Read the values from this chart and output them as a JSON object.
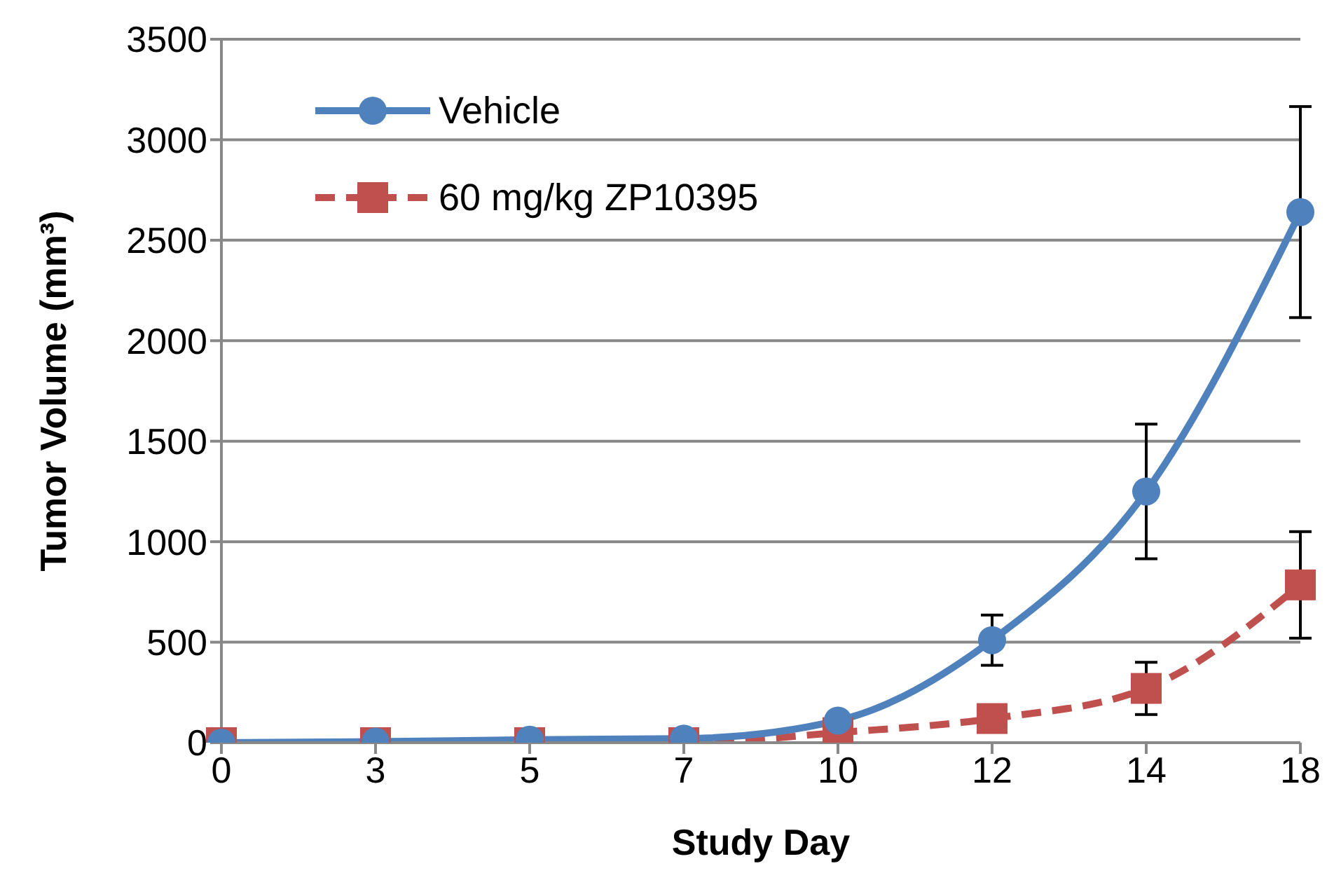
{
  "chart_data": {
    "type": "line",
    "xlabel": "Study Day",
    "ylabel": "Tumor Volume (mm³)",
    "categories": [
      "0",
      "3",
      "5",
      "7",
      "10",
      "12",
      "14",
      "18"
    ],
    "series": [
      {
        "name": "Vehicle",
        "color": "#4f81bd",
        "marker": "circle",
        "line_style": "solid",
        "values": [
          0,
          5,
          15,
          20,
          110,
          510,
          1250,
          2640
        ],
        "errors": [
          null,
          null,
          null,
          null,
          null,
          125,
          335,
          525
        ]
      },
      {
        "name": "60 mg/kg ZP10395",
        "color": "#c0504d",
        "marker": "square",
        "line_style": "dashed",
        "values": [
          0,
          0,
          0,
          0,
          50,
          120,
          270,
          785
        ],
        "errors": [
          null,
          null,
          null,
          null,
          null,
          null,
          130,
          265
        ]
      }
    ],
    "ylim": [
      0,
      3500
    ],
    "yticks": [
      0,
      500,
      1000,
      1500,
      2000,
      2500,
      3000,
      3500
    ],
    "grid": "y",
    "legend": "top left"
  }
}
